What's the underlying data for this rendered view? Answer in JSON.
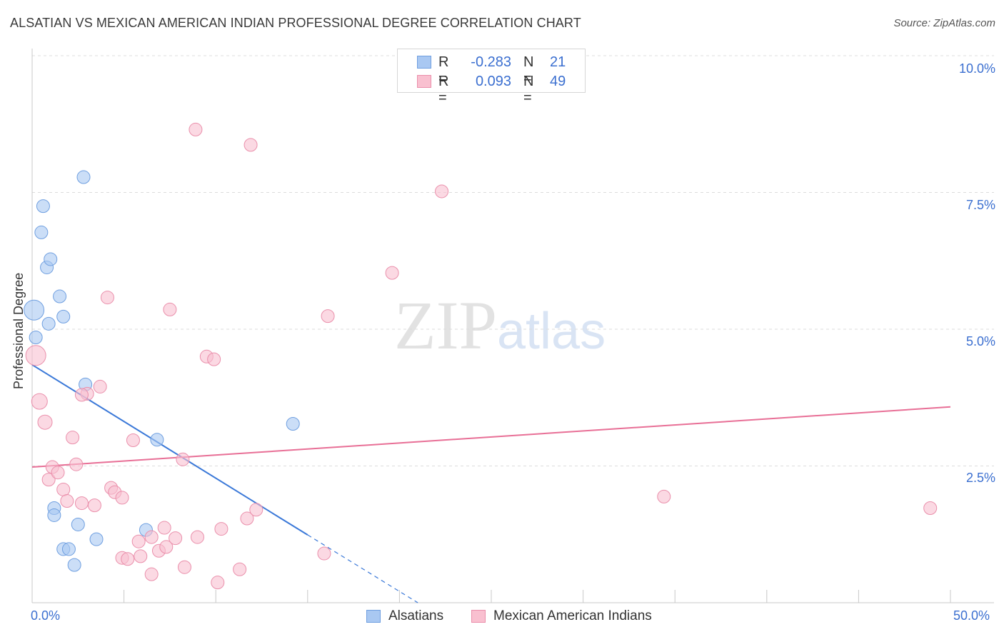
{
  "title": "ALSATIAN VS MEXICAN AMERICAN INDIAN PROFESSIONAL DEGREE CORRELATION CHART",
  "source": "Source: ZipAtlas.com",
  "watermark": {
    "zip": "ZIP",
    "atlas": "atlas"
  },
  "legend_top": {
    "rows": [
      {
        "r_label": "R =",
        "r_value": "-0.283",
        "n_label": "N =",
        "n_value": "21",
        "color": "#a9c8f2",
        "border": "#6f9fe0"
      },
      {
        "r_label": "R =",
        "r_value": "0.093",
        "n_label": "N =",
        "n_value": "49",
        "color": "#f9c0d0",
        "border": "#ea8fab"
      }
    ]
  },
  "legend_bottom": [
    {
      "label": "Alsatians",
      "color": "#a9c8f2",
      "border": "#6f9fe0"
    },
    {
      "label": "Mexican American Indians",
      "color": "#f9c0d0",
      "border": "#ea8fab"
    }
  ],
  "axes": {
    "ylabel": "Professional Degree",
    "yticks": [
      "10.0%",
      "7.5%",
      "5.0%",
      "2.5%"
    ],
    "xticks": [
      "0.0%",
      "50.0%"
    ]
  },
  "chart_data": {
    "type": "scatter",
    "title": "ALSATIAN VS MEXICAN AMERICAN INDIAN PROFESSIONAL DEGREE CORRELATION CHART",
    "xlabel": "",
    "ylabel": "Professional Degree",
    "xlim": [
      0,
      50
    ],
    "ylim": [
      0,
      10
    ],
    "grid": true,
    "legend": "bottom",
    "series": [
      {
        "name": "Alsatians",
        "color": "#a9c8f2",
        "stroke": "#6f9fe0",
        "points": [
          [
            0.1,
            5.35,
            14
          ],
          [
            0.2,
            4.85,
            9
          ],
          [
            0.5,
            6.77,
            9
          ],
          [
            0.6,
            7.25,
            9
          ],
          [
            0.9,
            5.1,
            9
          ],
          [
            0.8,
            6.13,
            9
          ],
          [
            1.0,
            6.28,
            9
          ],
          [
            1.5,
            5.6,
            9
          ],
          [
            1.7,
            5.23,
            9
          ],
          [
            2.8,
            7.78,
            9
          ],
          [
            1.2,
            1.73,
            9
          ],
          [
            1.2,
            1.6,
            9
          ],
          [
            1.7,
            0.98,
            9
          ],
          [
            2.0,
            0.98,
            9
          ],
          [
            2.5,
            1.43,
            9
          ],
          [
            2.3,
            0.69,
            9
          ],
          [
            3.5,
            1.16,
            9
          ],
          [
            2.9,
            3.99,
            9
          ],
          [
            6.8,
            2.98,
            9
          ],
          [
            6.2,
            1.33,
            9
          ],
          [
            14.2,
            3.27,
            9
          ]
        ],
        "trend": {
          "x0": 0,
          "y0": 4.35,
          "x1": 15,
          "y1": 1.24,
          "dashed_to_x": 21,
          "dashed_to_y": 0
        }
      },
      {
        "name": "Mexican American Indians",
        "color": "#f9c0d0",
        "stroke": "#ea8fab",
        "points": [
          [
            0.2,
            4.52,
            14
          ],
          [
            0.4,
            3.68,
            11
          ],
          [
            0.7,
            3.3,
            10
          ],
          [
            0.9,
            2.25,
            9
          ],
          [
            1.1,
            2.48,
            9
          ],
          [
            1.4,
            2.38,
            9
          ],
          [
            1.7,
            2.07,
            9
          ],
          [
            1.9,
            1.86,
            9
          ],
          [
            2.2,
            3.02,
            9
          ],
          [
            2.4,
            2.53,
            9
          ],
          [
            2.7,
            1.82,
            9
          ],
          [
            3.0,
            3.82,
            9
          ],
          [
            3.4,
            1.78,
            9
          ],
          [
            3.7,
            3.95,
            9
          ],
          [
            4.1,
            5.58,
            9
          ],
          [
            4.3,
            2.1,
            9
          ],
          [
            4.5,
            2.02,
            9
          ],
          [
            4.9,
            1.92,
            9
          ],
          [
            4.9,
            0.82,
            9
          ],
          [
            5.2,
            0.8,
            9
          ],
          [
            5.5,
            2.97,
            9
          ],
          [
            5.8,
            1.12,
            9
          ],
          [
            5.9,
            0.85,
            9
          ],
          [
            6.5,
            0.52,
            9
          ],
          [
            6.5,
            1.2,
            9
          ],
          [
            6.9,
            0.95,
            9
          ],
          [
            7.2,
            1.37,
            9
          ],
          [
            7.3,
            1.02,
            9
          ],
          [
            7.5,
            5.36,
            9
          ],
          [
            7.8,
            1.18,
            9
          ],
          [
            8.2,
            2.62,
            9
          ],
          [
            8.3,
            0.65,
            9
          ],
          [
            8.9,
            8.65,
            9
          ],
          [
            9.0,
            1.2,
            9
          ],
          [
            9.5,
            4.5,
            9
          ],
          [
            9.9,
            4.45,
            9
          ],
          [
            10.1,
            0.37,
            9
          ],
          [
            10.3,
            1.35,
            9
          ],
          [
            11.3,
            0.61,
            9
          ],
          [
            11.7,
            1.54,
            9
          ],
          [
            11.9,
            8.37,
            9
          ],
          [
            12.2,
            1.7,
            9
          ],
          [
            15.9,
            0.9,
            9
          ],
          [
            16.1,
            5.24,
            9
          ],
          [
            19.6,
            6.03,
            9
          ],
          [
            22.3,
            7.52,
            9
          ],
          [
            34.4,
            1.94,
            9
          ],
          [
            48.9,
            1.73,
            9
          ],
          [
            2.7,
            3.8,
            9
          ]
        ],
        "trend": {
          "x0": 0,
          "y0": 2.48,
          "x1": 50,
          "y1": 3.58
        }
      }
    ]
  }
}
